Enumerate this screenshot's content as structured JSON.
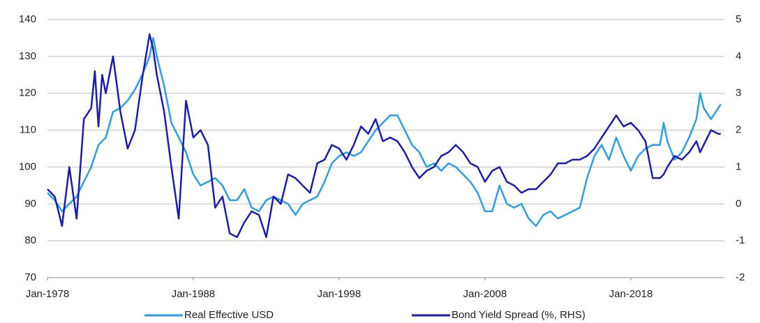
{
  "chart_data": {
    "type": "line",
    "x": [
      "1978-01",
      "1978-07",
      "1979-01",
      "1979-07",
      "1980-01",
      "1980-07",
      "1981-01",
      "1981-04",
      "1981-07",
      "1981-10",
      "1982-01",
      "1982-07",
      "1983-01",
      "1983-07",
      "1984-01",
      "1984-07",
      "1985-01",
      "1985-04",
      "1985-07",
      "1986-01",
      "1986-07",
      "1987-01",
      "1987-07",
      "1988-01",
      "1988-07",
      "1989-01",
      "1989-07",
      "1990-01",
      "1990-07",
      "1991-01",
      "1991-07",
      "1992-01",
      "1992-07",
      "1993-01",
      "1993-07",
      "1994-01",
      "1994-07",
      "1995-01",
      "1995-07",
      "1996-01",
      "1996-07",
      "1997-01",
      "1997-07",
      "1998-01",
      "1998-07",
      "1999-01",
      "1999-07",
      "2000-01",
      "2000-07",
      "2001-01",
      "2001-07",
      "2002-01",
      "2002-07",
      "2003-01",
      "2003-07",
      "2004-01",
      "2004-07",
      "2005-01",
      "2005-07",
      "2006-01",
      "2006-07",
      "2007-01",
      "2007-07",
      "2008-01",
      "2008-07",
      "2009-01",
      "2009-07",
      "2010-01",
      "2010-07",
      "2011-01",
      "2011-07",
      "2012-01",
      "2012-07",
      "2013-01",
      "2013-07",
      "2014-01",
      "2014-07",
      "2015-01",
      "2015-07",
      "2016-01",
      "2016-07",
      "2017-01",
      "2017-07",
      "2018-01",
      "2018-07",
      "2019-01",
      "2019-07",
      "2020-01",
      "2020-04",
      "2020-07",
      "2021-01",
      "2021-07",
      "2022-01",
      "2022-07",
      "2022-10",
      "2023-01",
      "2023-07",
      "2024-01",
      "2024-03"
    ],
    "series": [
      {
        "name": "Real Effective USD",
        "color": "#2a9fe5",
        "values": [
          93,
          91,
          88,
          90,
          92,
          96,
          100,
          103,
          106,
          107,
          108,
          115,
          116,
          118,
          121,
          125,
          130,
          135,
          130,
          122,
          112,
          108,
          104,
          98,
          95,
          96,
          97,
          95,
          91,
          91,
          94,
          89,
          88,
          91,
          92,
          91,
          90,
          87,
          90,
          91,
          92,
          96,
          101,
          103,
          104,
          103,
          104,
          107,
          110,
          112,
          114,
          114,
          110,
          106,
          104,
          100,
          101,
          99,
          101,
          100,
          98,
          96,
          93,
          88,
          88,
          95,
          90,
          89,
          90,
          86,
          84,
          87,
          88,
          86,
          87,
          88,
          89,
          97,
          103,
          106,
          102,
          108,
          103,
          99,
          103,
          105,
          106,
          106,
          112,
          107,
          102,
          104,
          108,
          113,
          120,
          116,
          113,
          116,
          117
        ]
      },
      {
        "name": "Bond Yield Spread (%, RHS)",
        "color": "#1c1cb0",
        "axis": "y2",
        "values": [
          0.4,
          0.2,
          -0.6,
          1.0,
          -0.4,
          2.3,
          2.6,
          3.6,
          2.1,
          3.5,
          3.0,
          4.0,
          2.5,
          1.5,
          2.0,
          3.4,
          4.6,
          4.2,
          3.5,
          2.5,
          1.0,
          -0.4,
          2.8,
          1.8,
          2.0,
          1.6,
          -0.1,
          0.2,
          -0.8,
          -0.9,
          -0.5,
          -0.2,
          -0.3,
          -0.9,
          0.2,
          0.0,
          0.8,
          0.7,
          0.5,
          0.3,
          1.1,
          1.2,
          1.6,
          1.5,
          1.2,
          1.6,
          2.1,
          1.9,
          2.3,
          1.7,
          1.8,
          1.7,
          1.4,
          1.0,
          0.7,
          0.9,
          1.0,
          1.3,
          1.4,
          1.6,
          1.4,
          1.1,
          1.0,
          0.6,
          0.9,
          1.0,
          0.6,
          0.5,
          0.3,
          0.4,
          0.4,
          0.6,
          0.8,
          1.1,
          1.1,
          1.2,
          1.2,
          1.3,
          1.5,
          1.8,
          2.1,
          2.4,
          2.1,
          2.2,
          2.0,
          1.7,
          0.7,
          0.7,
          0.8,
          1.0,
          1.3,
          1.2,
          1.4,
          1.7,
          1.4,
          1.6,
          2.0,
          1.9,
          1.9
        ]
      }
    ],
    "xlim": [
      "1978-01",
      "2024-06"
    ],
    "xticks": [
      {
        "value": "1978-01",
        "label": "Jan-1978"
      },
      {
        "value": "1988-01",
        "label": "Jan-1988"
      },
      {
        "value": "1998-01",
        "label": "Jan-1998"
      },
      {
        "value": "2008-01",
        "label": "Jan-2008"
      },
      {
        "value": "2018-01",
        "label": "Jan-2018"
      }
    ],
    "ylim": [
      70,
      140
    ],
    "yticks": [
      70,
      80,
      90,
      100,
      110,
      120,
      130,
      140
    ],
    "y2lim": [
      -2,
      5
    ],
    "y2ticks": [
      -2,
      -1,
      0,
      1,
      2,
      3,
      4,
      5
    ],
    "grid": true,
    "legend": "bottom"
  }
}
